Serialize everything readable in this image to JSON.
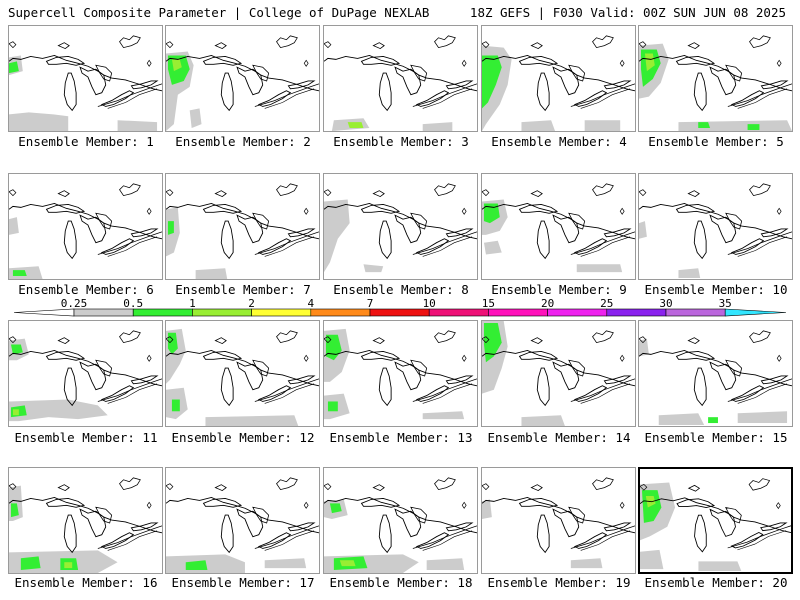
{
  "header": {
    "title_left": "Supercell Composite Parameter | College of DuPage NEXLAB",
    "title_right": "18Z GEFS | F030 Valid: 00Z SUN JUN 08 2025"
  },
  "colorbar": {
    "ticks": [
      "0.25",
      "0.5",
      "1",
      "2",
      "4",
      "7",
      "10",
      "15",
      "20",
      "25",
      "30",
      "35"
    ],
    "colors": [
      "#cccccc",
      "#33ee33",
      "#99ee33",
      "#ffff33",
      "#ff8a1a",
      "#ee1111",
      "#ee1177",
      "#ff11bb",
      "#ee22ee",
      "#8a22ee",
      "#bb66dd",
      "#33e6ff"
    ]
  },
  "members": [
    {
      "label": "Ensemble Member: 1"
    },
    {
      "label": "Ensemble Member: 2"
    },
    {
      "label": "Ensemble Member: 3"
    },
    {
      "label": "Ensemble Member: 4"
    },
    {
      "label": "Ensemble Member: 5"
    },
    {
      "label": "Ensemble Member: 6"
    },
    {
      "label": "Ensemble Member: 7"
    },
    {
      "label": "Ensemble Member: 8"
    },
    {
      "label": "Ensemble Member: 9"
    },
    {
      "label": "Ensemble Member: 10"
    },
    {
      "label": "Ensemble Member: 11"
    },
    {
      "label": "Ensemble Member: 12"
    },
    {
      "label": "Ensemble Member: 13"
    },
    {
      "label": "Ensemble Member: 14"
    },
    {
      "label": "Ensemble Member: 15"
    },
    {
      "label": "Ensemble Member: 16"
    },
    {
      "label": "Ensemble Member: 17"
    },
    {
      "label": "Ensemble Member: 18"
    },
    {
      "label": "Ensemble Member: 19"
    },
    {
      "label": "Ensemble Member: 20",
      "selected": true
    }
  ]
}
